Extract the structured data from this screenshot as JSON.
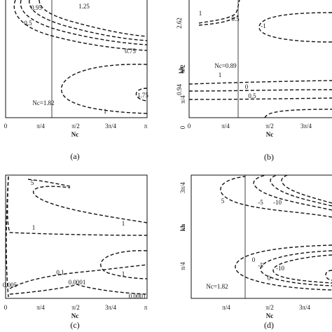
{
  "panels": [
    {
      "label": "(a)",
      "x_axis_label": "Nc",
      "x_ticks": [
        "0",
        "π/4",
        "π/2",
        "3π/4",
        "π"
      ],
      "y_axis_label": null,
      "y_ticks": [],
      "critical_label": "Nc=1.82",
      "contour_labels": [
        "0.95",
        "0.5",
        "1.25",
        "0.75",
        "1.75",
        "1"
      ]
    },
    {
      "label": "(b)",
      "x_axis_label": "Nc",
      "x_ticks": [
        "0",
        "π/4",
        "π/2",
        "3π/4"
      ],
      "y_axis_label": "kh",
      "y_ticks": [
        "2.62",
        "π/2",
        "0.94",
        "π/4",
        "0"
      ],
      "critical_label": "Nc=0.89",
      "contour_labels": [
        "1",
        "0.5",
        "-1",
        "1",
        "0",
        "0.5"
      ]
    },
    {
      "label": "(c)",
      "x_axis_label": "Nc",
      "x_ticks": [
        "0",
        "π/4",
        "π/2",
        "3π/4",
        "π"
      ],
      "y_axis_label": null,
      "y_ticks": [],
      "critical_label": null,
      "contour_labels": [
        "5",
        "1",
        "1",
        "0.1",
        "0.005",
        "0.0001",
        "0.0001",
        "1"
      ]
    },
    {
      "label": "(d)",
      "x_axis_label": "Nc",
      "x_ticks": [
        "π/4",
        "π/2",
        "3π/4"
      ],
      "y_axis_label": "kh",
      "y_ticks": [
        "3π/4",
        "π/4"
      ],
      "critical_label": "Nc=1.82",
      "contour_labels": [
        "5",
        "-5",
        "-10",
        "0",
        "-5",
        "-10",
        "0"
      ]
    }
  ]
}
